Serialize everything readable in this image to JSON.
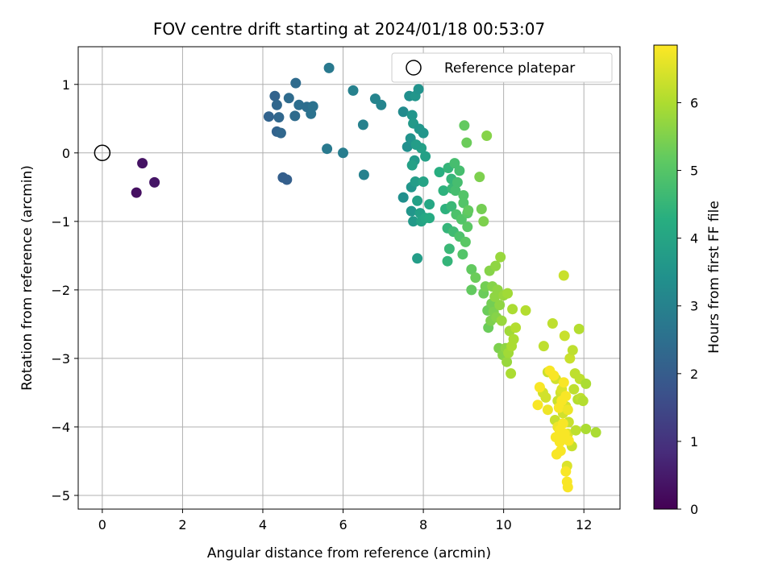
{
  "chart_data": {
    "type": "scatter",
    "title": "FOV centre drift starting at 2024/01/18 00:53:07",
    "xlabel": "Angular distance from reference (arcmin)",
    "ylabel": "Rotation from reference (arcmin)",
    "xlim": [
      -0.6,
      12.9
    ],
    "ylim": [
      -5.2,
      1.55
    ],
    "xticks": [
      0,
      2,
      4,
      6,
      8,
      10,
      12
    ],
    "yticks": [
      1,
      0,
      -1,
      -2,
      -3,
      -4,
      -5
    ],
    "grid": true,
    "legend": {
      "position": "top-right",
      "entries": [
        {
          "label": "Reference platepar",
          "marker": "open-circle"
        }
      ]
    },
    "reference_point": {
      "x": 0,
      "y": 0
    },
    "colorbar": {
      "label": "Hours from first FF file",
      "colormap": "viridis",
      "range": [
        0,
        6.85
      ],
      "ticks": [
        0,
        1,
        2,
        3,
        4,
        5,
        6
      ]
    },
    "points": [
      {
        "x": 0.85,
        "y": -0.58,
        "c": 0.3
      },
      {
        "x": 1.0,
        "y": -0.15,
        "c": 0.35
      },
      {
        "x": 1.3,
        "y": -0.43,
        "c": 0.4
      },
      {
        "x": 4.15,
        "y": 0.53,
        "c": 2.2
      },
      {
        "x": 4.3,
        "y": 0.83,
        "c": 2.2
      },
      {
        "x": 4.35,
        "y": 0.7,
        "c": 2.3
      },
      {
        "x": 4.4,
        "y": 0.52,
        "c": 2.3
      },
      {
        "x": 4.35,
        "y": 0.31,
        "c": 2.2
      },
      {
        "x": 4.45,
        "y": 0.29,
        "c": 2.3
      },
      {
        "x": 4.5,
        "y": -0.36,
        "c": 2.1
      },
      {
        "x": 4.6,
        "y": -0.39,
        "c": 2.1
      },
      {
        "x": 4.65,
        "y": 0.8,
        "c": 2.4
      },
      {
        "x": 4.8,
        "y": 0.54,
        "c": 2.4
      },
      {
        "x": 4.82,
        "y": 1.02,
        "c": 2.4
      },
      {
        "x": 4.9,
        "y": 0.7,
        "c": 2.5
      },
      {
        "x": 5.1,
        "y": 0.67,
        "c": 2.5
      },
      {
        "x": 5.2,
        "y": 0.57,
        "c": 2.6
      },
      {
        "x": 5.25,
        "y": 0.68,
        "c": 2.6
      },
      {
        "x": 5.6,
        "y": 0.06,
        "c": 2.8
      },
      {
        "x": 5.65,
        "y": 1.24,
        "c": 2.8
      },
      {
        "x": 6.0,
        "y": 0.0,
        "c": 2.9
      },
      {
        "x": 6.25,
        "y": 0.91,
        "c": 3.0
      },
      {
        "x": 6.5,
        "y": 0.41,
        "c": 3.0
      },
      {
        "x": 6.52,
        "y": -0.32,
        "c": 3.0
      },
      {
        "x": 6.8,
        "y": 0.79,
        "c": 3.1
      },
      {
        "x": 6.95,
        "y": 0.7,
        "c": 3.1
      },
      {
        "x": 7.5,
        "y": 0.6,
        "c": 3.3
      },
      {
        "x": 7.5,
        "y": -0.65,
        "c": 3.4
      },
      {
        "x": 7.6,
        "y": 0.09,
        "c": 3.4
      },
      {
        "x": 7.65,
        "y": 0.83,
        "c": 3.4
      },
      {
        "x": 7.68,
        "y": 0.21,
        "c": 3.5
      },
      {
        "x": 7.7,
        "y": -0.5,
        "c": 3.6
      },
      {
        "x": 7.7,
        "y": -0.85,
        "c": 3.6
      },
      {
        "x": 7.72,
        "y": 0.55,
        "c": 3.6
      },
      {
        "x": 7.75,
        "y": 0.43,
        "c": 3.7
      },
      {
        "x": 7.75,
        "y": -1.0,
        "c": 3.7
      },
      {
        "x": 7.78,
        "y": -0.11,
        "c": 3.7
      },
      {
        "x": 7.8,
        "y": -0.42,
        "c": 3.8
      },
      {
        "x": 7.8,
        "y": 0.83,
        "c": 3.6
      },
      {
        "x": 7.85,
        "y": -1.54,
        "c": 3.8
      },
      {
        "x": 7.85,
        "y": -0.7,
        "c": 3.9
      },
      {
        "x": 7.88,
        "y": 0.93,
        "c": 3.5
      },
      {
        "x": 7.9,
        "y": 0.35,
        "c": 3.6
      },
      {
        "x": 7.92,
        "y": -0.88,
        "c": 3.9
      },
      {
        "x": 7.95,
        "y": -1.0,
        "c": 4.0
      },
      {
        "x": 7.95,
        "y": 0.07,
        "c": 3.9
      },
      {
        "x": 8.0,
        "y": 0.29,
        "c": 3.6
      },
      {
        "x": 8.0,
        "y": -0.42,
        "c": 4.0
      },
      {
        "x": 8.05,
        "y": -0.05,
        "c": 3.9
      },
      {
        "x": 8.05,
        "y": -0.95,
        "c": 4.1
      },
      {
        "x": 8.15,
        "y": -0.75,
        "c": 4.1
      },
      {
        "x": 8.15,
        "y": -0.95,
        "c": 4.2
      },
      {
        "x": 7.72,
        "y": -0.18,
        "c": 3.9
      },
      {
        "x": 7.82,
        "y": 0.12,
        "c": 3.8
      },
      {
        "x": 8.4,
        "y": -0.28,
        "c": 4.3
      },
      {
        "x": 8.5,
        "y": -0.55,
        "c": 4.4
      },
      {
        "x": 8.55,
        "y": -0.82,
        "c": 4.4
      },
      {
        "x": 8.6,
        "y": -1.1,
        "c": 4.5
      },
      {
        "x": 8.6,
        "y": -1.58,
        "c": 4.5
      },
      {
        "x": 8.62,
        "y": -0.22,
        "c": 4.5
      },
      {
        "x": 8.65,
        "y": -1.4,
        "c": 4.6
      },
      {
        "x": 8.7,
        "y": -0.38,
        "c": 4.5
      },
      {
        "x": 8.7,
        "y": -0.78,
        "c": 4.6
      },
      {
        "x": 8.72,
        "y": -0.52,
        "c": 4.6
      },
      {
        "x": 8.75,
        "y": -1.15,
        "c": 4.7
      },
      {
        "x": 8.78,
        "y": -0.15,
        "c": 4.8
      },
      {
        "x": 8.8,
        "y": -0.55,
        "c": 4.8
      },
      {
        "x": 8.82,
        "y": -0.9,
        "c": 4.9
      },
      {
        "x": 8.85,
        "y": -0.43,
        "c": 4.8
      },
      {
        "x": 8.9,
        "y": -1.22,
        "c": 4.9
      },
      {
        "x": 8.9,
        "y": -0.26,
        "c": 4.8
      },
      {
        "x": 8.95,
        "y": -0.97,
        "c": 5.0
      },
      {
        "x": 8.98,
        "y": -1.48,
        "c": 5.0
      },
      {
        "x": 9.0,
        "y": -0.62,
        "c": 5.0
      },
      {
        "x": 9.0,
        "y": -0.73,
        "c": 5.0
      },
      {
        "x": 9.02,
        "y": 0.4,
        "c": 5.2
      },
      {
        "x": 9.05,
        "y": -1.3,
        "c": 5.1
      },
      {
        "x": 9.08,
        "y": 0.15,
        "c": 5.3
      },
      {
        "x": 9.1,
        "y": -0.88,
        "c": 5.1
      },
      {
        "x": 9.1,
        "y": -1.08,
        "c": 5.1
      },
      {
        "x": 9.12,
        "y": -0.84,
        "c": 5.2
      },
      {
        "x": 9.2,
        "y": -1.7,
        "c": 5.2
      },
      {
        "x": 9.2,
        "y": -2.0,
        "c": 5.2
      },
      {
        "x": 9.3,
        "y": -1.82,
        "c": 5.3
      },
      {
        "x": 9.4,
        "y": -0.35,
        "c": 5.5
      },
      {
        "x": 9.45,
        "y": -0.82,
        "c": 5.4
      },
      {
        "x": 9.5,
        "y": -1.0,
        "c": 5.5
      },
      {
        "x": 9.5,
        "y": -2.05,
        "c": 5.3
      },
      {
        "x": 9.55,
        "y": -1.95,
        "c": 5.4
      },
      {
        "x": 9.58,
        "y": 0.25,
        "c": 5.6
      },
      {
        "x": 9.6,
        "y": -2.3,
        "c": 5.3
      },
      {
        "x": 9.62,
        "y": -2.55,
        "c": 5.3
      },
      {
        "x": 9.65,
        "y": -1.72,
        "c": 5.6
      },
      {
        "x": 9.68,
        "y": -2.45,
        "c": 5.5
      },
      {
        "x": 9.7,
        "y": -2.2,
        "c": 5.4
      },
      {
        "x": 9.72,
        "y": -1.95,
        "c": 5.6
      },
      {
        "x": 9.75,
        "y": -2.32,
        "c": 5.5
      },
      {
        "x": 9.78,
        "y": -2.1,
        "c": 5.7
      },
      {
        "x": 9.8,
        "y": -1.65,
        "c": 5.7
      },
      {
        "x": 9.82,
        "y": -2.4,
        "c": 5.6
      },
      {
        "x": 9.85,
        "y": -2.0,
        "c": 5.7
      },
      {
        "x": 9.88,
        "y": -2.85,
        "c": 5.5
      },
      {
        "x": 9.9,
        "y": -2.22,
        "c": 5.7
      },
      {
        "x": 9.92,
        "y": -1.52,
        "c": 5.8
      },
      {
        "x": 9.95,
        "y": -2.45,
        "c": 5.8
      },
      {
        "x": 9.98,
        "y": -2.95,
        "c": 5.6
      },
      {
        "x": 10.0,
        "y": -2.08,
        "c": 5.8
      },
      {
        "x": 10.05,
        "y": -2.85,
        "c": 5.7
      },
      {
        "x": 10.08,
        "y": -3.05,
        "c": 5.8
      },
      {
        "x": 10.1,
        "y": -2.05,
        "c": 5.9
      },
      {
        "x": 10.12,
        "y": -2.92,
        "c": 5.9
      },
      {
        "x": 10.15,
        "y": -2.6,
        "c": 5.9
      },
      {
        "x": 10.18,
        "y": -3.22,
        "c": 6.0
      },
      {
        "x": 10.2,
        "y": -2.82,
        "c": 6.0
      },
      {
        "x": 10.22,
        "y": -2.28,
        "c": 6.0
      },
      {
        "x": 10.25,
        "y": -2.72,
        "c": 6.0
      },
      {
        "x": 10.3,
        "y": -2.55,
        "c": 6.1
      },
      {
        "x": 10.55,
        "y": -2.3,
        "c": 6.1
      },
      {
        "x": 10.98,
        "y": -3.5,
        "c": 6.4
      },
      {
        "x": 11.0,
        "y": -2.82,
        "c": 6.2
      },
      {
        "x": 11.05,
        "y": -3.57,
        "c": 6.4
      },
      {
        "x": 11.1,
        "y": -3.2,
        "c": 6.3
      },
      {
        "x": 11.22,
        "y": -2.49,
        "c": 6.2
      },
      {
        "x": 11.28,
        "y": -3.9,
        "c": 6.3
      },
      {
        "x": 11.3,
        "y": -3.3,
        "c": 6.4
      },
      {
        "x": 11.35,
        "y": -3.62,
        "c": 6.3
      },
      {
        "x": 11.4,
        "y": -4.0,
        "c": 6.4
      },
      {
        "x": 11.42,
        "y": -3.5,
        "c": 6.4
      },
      {
        "x": 11.45,
        "y": -3.45,
        "c": 6.5
      },
      {
        "x": 11.48,
        "y": -3.8,
        "c": 6.4
      },
      {
        "x": 11.5,
        "y": -1.79,
        "c": 6.3
      },
      {
        "x": 11.52,
        "y": -2.67,
        "c": 6.3
      },
      {
        "x": 11.55,
        "y": -3.7,
        "c": 6.4
      },
      {
        "x": 11.58,
        "y": -4.57,
        "c": 6.5
      },
      {
        "x": 11.6,
        "y": -4.1,
        "c": 6.5
      },
      {
        "x": 11.62,
        "y": -3.93,
        "c": 6.3
      },
      {
        "x": 11.65,
        "y": -3.0,
        "c": 6.3
      },
      {
        "x": 11.7,
        "y": -4.28,
        "c": 6.3
      },
      {
        "x": 11.72,
        "y": -2.88,
        "c": 6.2
      },
      {
        "x": 11.75,
        "y": -3.45,
        "c": 6.2
      },
      {
        "x": 11.78,
        "y": -3.22,
        "c": 6.2
      },
      {
        "x": 11.8,
        "y": -4.05,
        "c": 6.2
      },
      {
        "x": 11.85,
        "y": -3.6,
        "c": 6.1
      },
      {
        "x": 11.88,
        "y": -2.57,
        "c": 6.1
      },
      {
        "x": 11.9,
        "y": -3.3,
        "c": 6.2
      },
      {
        "x": 11.92,
        "y": -3.58,
        "c": 6.2
      },
      {
        "x": 11.98,
        "y": -3.62,
        "c": 6.1
      },
      {
        "x": 12.05,
        "y": -3.37,
        "c": 6.0
      },
      {
        "x": 12.05,
        "y": -4.03,
        "c": 6.0
      },
      {
        "x": 12.3,
        "y": -4.08,
        "c": 6.0
      },
      {
        "x": 10.85,
        "y": -3.68,
        "c": 6.8
      },
      {
        "x": 10.9,
        "y": -3.42,
        "c": 6.8
      },
      {
        "x": 11.1,
        "y": -3.75,
        "c": 6.7
      },
      {
        "x": 11.15,
        "y": -3.18,
        "c": 6.8
      },
      {
        "x": 11.25,
        "y": -3.25,
        "c": 6.8
      },
      {
        "x": 11.3,
        "y": -4.15,
        "c": 6.8
      },
      {
        "x": 11.32,
        "y": -4.4,
        "c": 6.8
      },
      {
        "x": 11.35,
        "y": -4.0,
        "c": 6.7
      },
      {
        "x": 11.38,
        "y": -3.72,
        "c": 6.8
      },
      {
        "x": 11.4,
        "y": -4.22,
        "c": 6.8
      },
      {
        "x": 11.42,
        "y": -4.35,
        "c": 6.8
      },
      {
        "x": 11.45,
        "y": -3.62,
        "c": 6.8
      },
      {
        "x": 11.48,
        "y": -3.95,
        "c": 6.8
      },
      {
        "x": 11.5,
        "y": -3.35,
        "c": 6.8
      },
      {
        "x": 11.52,
        "y": -4.1,
        "c": 6.8
      },
      {
        "x": 11.55,
        "y": -4.65,
        "c": 6.8
      },
      {
        "x": 11.55,
        "y": -3.55,
        "c": 6.8
      },
      {
        "x": 11.58,
        "y": -4.8,
        "c": 6.8
      },
      {
        "x": 11.6,
        "y": -4.88,
        "c": 6.8
      },
      {
        "x": 11.62,
        "y": -4.2,
        "c": 6.8
      },
      {
        "x": 11.6,
        "y": -3.75,
        "c": 6.7
      },
      {
        "x": 11.4,
        "y": -4.05,
        "c": 6.8
      }
    ]
  }
}
